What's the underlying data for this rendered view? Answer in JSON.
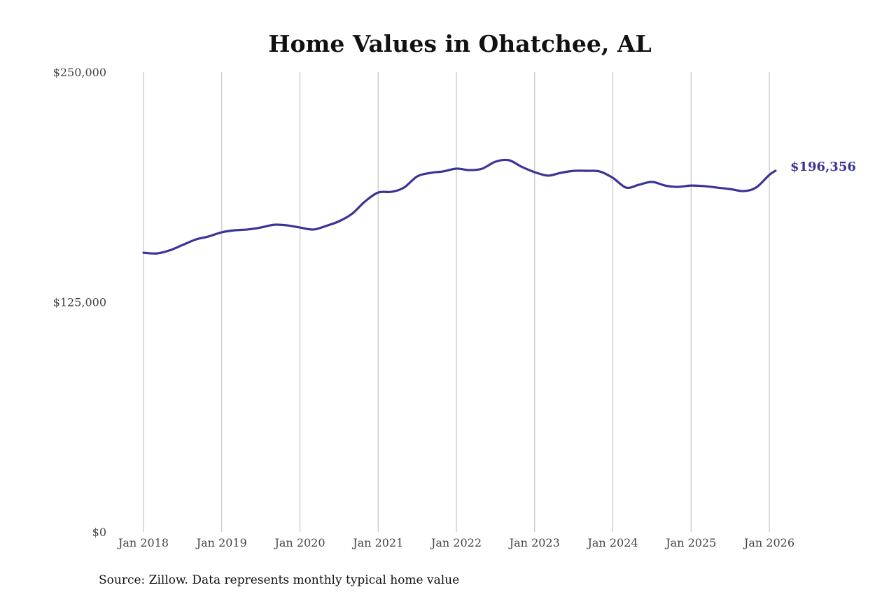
{
  "chart_data": {
    "type": "line",
    "title": "Home Values in Ohatchee, AL",
    "xlabel": "",
    "ylabel": "",
    "ylim": [
      0,
      250000
    ],
    "xlim": [
      2018.0,
      2026.0
    ],
    "y_ticks": [
      0,
      125000,
      250000
    ],
    "y_tick_labels": [
      "$0",
      "$125,000",
      "$250,000"
    ],
    "x_ticks": [
      2018,
      2019,
      2020,
      2021,
      2022,
      2023,
      2024,
      2025,
      2026
    ],
    "x_tick_labels": [
      "Jan 2018",
      "Jan 2019",
      "Jan 2020",
      "Jan 2021",
      "Jan 2022",
      "Jan 2023",
      "Jan 2024",
      "Jan 2025",
      "Jan 2026"
    ],
    "grid": "vertical",
    "line_color": "#3b3497",
    "series": [
      {
        "name": "Typical home value",
        "x": [
          2018.0,
          2018.17,
          2018.33,
          2018.5,
          2018.67,
          2018.83,
          2019.0,
          2019.17,
          2019.33,
          2019.5,
          2019.67,
          2019.83,
          2020.0,
          2020.17,
          2020.33,
          2020.5,
          2020.67,
          2020.83,
          2021.0,
          2021.17,
          2021.33,
          2021.5,
          2021.67,
          2021.83,
          2022.0,
          2022.17,
          2022.33,
          2022.5,
          2022.67,
          2022.83,
          2023.0,
          2023.17,
          2023.33,
          2023.5,
          2023.67,
          2023.83,
          2024.0,
          2024.17,
          2024.33,
          2024.5,
          2024.67,
          2024.83,
          2025.0,
          2025.17,
          2025.33,
          2025.5,
          2025.67,
          2025.83,
          2026.0,
          2026.08
        ],
        "values": [
          151800,
          151400,
          153000,
          156000,
          159000,
          160600,
          162900,
          164000,
          164400,
          165500,
          167000,
          166700,
          165500,
          164400,
          166300,
          168900,
          173100,
          179600,
          184500,
          184900,
          187200,
          193300,
          195200,
          196000,
          197500,
          196700,
          197500,
          201300,
          202100,
          198600,
          195600,
          193700,
          195200,
          196300,
          196300,
          196000,
          192500,
          187200,
          188700,
          190300,
          188300,
          187600,
          188300,
          188000,
          187200,
          186400,
          185300,
          187200,
          194100,
          196356
        ]
      }
    ],
    "end_label": "$196,356",
    "source": "Source: Zillow. Data represents monthly typical home value"
  }
}
